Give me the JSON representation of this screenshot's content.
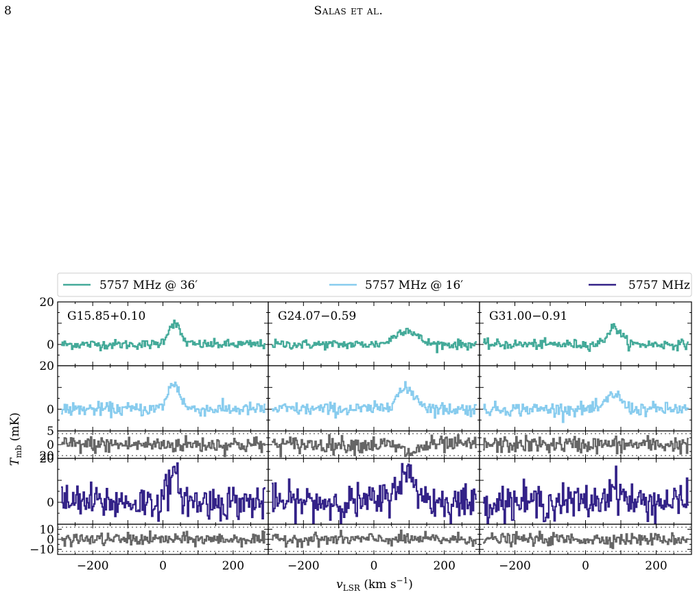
{
  "page": {
    "number": "8",
    "running_head": "Salas et al."
  },
  "chart_data": {
    "type": "line",
    "xlabel": "v_LSR (km s^-1)",
    "ylabel": "T_mb (mK)",
    "xlim": [
      -300,
      300
    ],
    "xticks": [
      -200,
      0,
      200
    ],
    "legend": {
      "position": "top",
      "entries": [
        {
          "label": "5757 MHz @ 36′",
          "color": "#44aa99"
        },
        {
          "label": "5757 MHz @ 16′",
          "color": "#88ccee"
        },
        {
          "label": "5757 MHz",
          "color": "#332288"
        }
      ]
    },
    "columns": [
      {
        "source": "G15.85+0.10",
        "center": 30,
        "width": 40,
        "peaks": [
          10,
          12,
          11
        ],
        "resid": [
          0,
          0
        ]
      },
      {
        "source": "G24.07−0.59",
        "center": 90,
        "width": 70,
        "peaks": [
          7,
          9,
          12
        ],
        "resid": [
          -3,
          0
        ]
      },
      {
        "source": "G31.00−0.91",
        "center": 80,
        "width": 45,
        "peaks": [
          8,
          7,
          7
        ],
        "resid": [
          0,
          0
        ]
      }
    ],
    "rows": [
      {
        "kind": "spectrum",
        "series": "5757 MHz @ 36′",
        "ylim": [
          -10,
          20
        ],
        "yticks": [
          "20",
          "0"
        ],
        "noise": 1.1,
        "color": "#44aa99"
      },
      {
        "kind": "spectrum",
        "series": "5757 MHz @ 16′",
        "ylim": [
          -10,
          20
        ],
        "yticks": [
          "20",
          "0"
        ],
        "noise": 1.5,
        "color": "#88ccee"
      },
      {
        "kind": "residual",
        "ylim": [
          -5,
          5
        ],
        "yticks": [
          "5",
          "0"
        ],
        "dotted": [
          -4,
          4
        ],
        "noise": 1.5,
        "color": "#666666"
      },
      {
        "kind": "spectrum",
        "series": "5757 MHz",
        "ylim": [
          -10,
          20
        ],
        "yticks": [
          "20",
          "0"
        ],
        "noise": 4.0,
        "color": "#332288"
      },
      {
        "kind": "residual",
        "ylim": [
          -15,
          15
        ],
        "yticks": [
          "10",
          "0",
          "−10"
        ],
        "dotted": [
          -12,
          12
        ],
        "noise": 3.0,
        "color": "#666666"
      }
    ],
    "overlap_labels": [
      {
        "row": 2,
        "text": "20"
      }
    ]
  }
}
